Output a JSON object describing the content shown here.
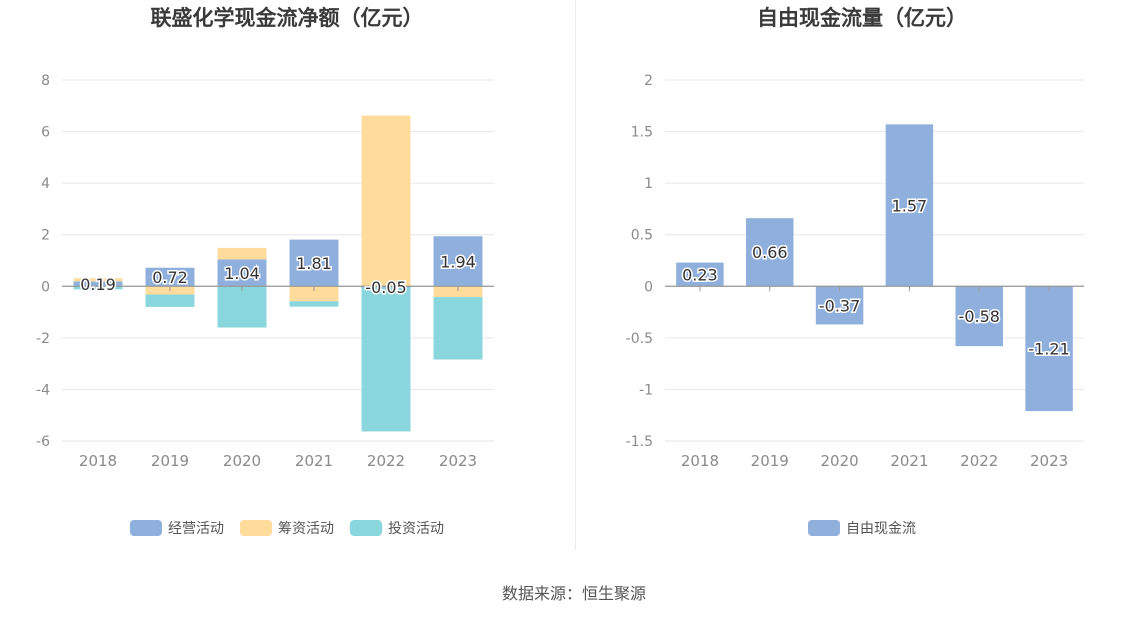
{
  "source": "数据来源：恒生聚源",
  "chart_data": [
    {
      "type": "bar",
      "stacked": true,
      "title": "联盛化学现金流净额（亿元）",
      "categories": [
        "2018",
        "2019",
        "2020",
        "2021",
        "2022",
        "2023"
      ],
      "ylim": [
        -6,
        8
      ],
      "yticks": [
        8,
        6,
        4,
        2,
        0,
        -2,
        -4,
        -6
      ],
      "grid": true,
      "legend_position": "bottom",
      "series": [
        {
          "name": "经营活动",
          "color": "#8fb0dc",
          "values": [
            0.19,
            0.72,
            1.04,
            1.81,
            -0.05,
            1.94
          ]
        },
        {
          "name": "筹资活动",
          "color": "#ffdb9c",
          "values": [
            0.12,
            -0.32,
            0.45,
            -0.58,
            6.62,
            -0.42
          ]
        },
        {
          "name": "投资活动",
          "color": "#89d7dc",
          "values": [
            -0.12,
            -0.48,
            -1.6,
            -0.21,
            -5.58,
            -2.42
          ]
        }
      ],
      "data_labels": [
        "0.19",
        "0.72",
        "1.04",
        "1.81",
        "-0.05",
        "1.94"
      ]
    },
    {
      "type": "bar",
      "title": "自由现金流量（亿元）",
      "categories": [
        "2018",
        "2019",
        "2020",
        "2021",
        "2022",
        "2023"
      ],
      "ylim": [
        -1.5,
        2
      ],
      "yticks": [
        2,
        1.5,
        1,
        0.5,
        0,
        -0.5,
        -1,
        -1.5
      ],
      "ytick_labels": [
        "2",
        "1.5",
        "1",
        "0.5",
        "0",
        "-0.5",
        "-1",
        "-1.5"
      ],
      "grid": true,
      "legend_position": "bottom",
      "series": [
        {
          "name": "自由现金流",
          "color": "#8fb0dc",
          "values": [
            0.23,
            0.66,
            -0.37,
            1.57,
            -0.58,
            -1.21
          ]
        }
      ],
      "data_labels": [
        "0.23",
        "0.66",
        "-0.37",
        "1.57",
        "-0.58",
        "-1.21"
      ]
    }
  ]
}
